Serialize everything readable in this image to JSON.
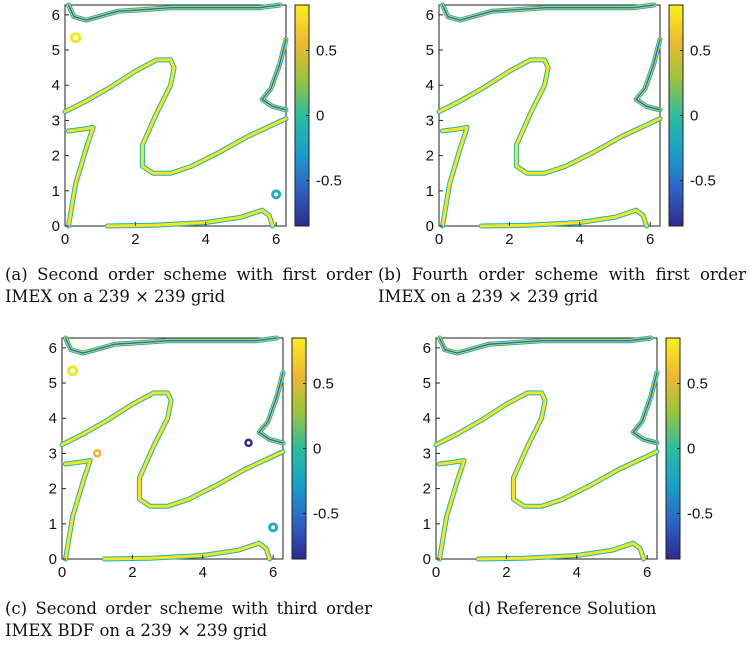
{
  "colors": {
    "yellow": "#f5e61e",
    "orange": "#f0b030",
    "teal": "#1fb0b8",
    "blue": "#1f6ed2",
    "navy": "#2a2c8a",
    "colorbar_stops": [
      "#2e2a8c",
      "#2d63c8",
      "#1aa0c8",
      "#2bbd9f",
      "#9cc43d",
      "#f0b92f",
      "#f8ef1c"
    ]
  },
  "axes": {
    "x_ticks": [
      "0",
      "2",
      "4",
      "6"
    ],
    "y_ticks": [
      "0",
      "1",
      "2",
      "3",
      "4",
      "5",
      "6"
    ],
    "colorbar_ticks": [
      "0.5",
      "0",
      "-0.5"
    ]
  },
  "panels": [
    {
      "id": "a",
      "caption": "(a) Second order scheme with first order IMEX on a 239 × 239 grid"
    },
    {
      "id": "b",
      "caption": "(b) Fourth order scheme with first order IMEX on a 239 × 239 grid"
    },
    {
      "id": "c",
      "caption": "(c) Second order scheme with third order IMEX BDF on a 239 × 239 grid"
    },
    {
      "id": "d",
      "caption": "(d) Reference Solution"
    }
  ]
}
